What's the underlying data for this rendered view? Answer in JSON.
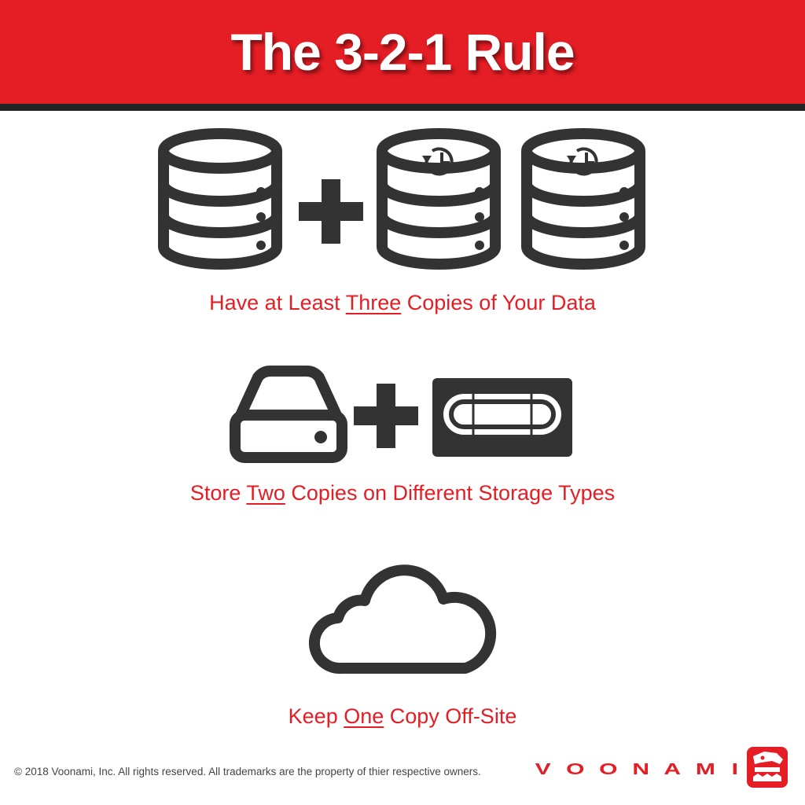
{
  "header": {
    "title": "The 3-2-1 Rule"
  },
  "sections": [
    {
      "icons": [
        "database-icon",
        "plus-icon",
        "backup-database-icon",
        "backup-database-icon"
      ],
      "caption": {
        "before": "Have at Least ",
        "emphasis": "Three",
        "after": " Copies of Your Data"
      }
    },
    {
      "icons": [
        "hard-drive-icon",
        "plus-icon",
        "tape-cartridge-icon"
      ],
      "caption": {
        "before": "Store ",
        "emphasis": "Two",
        "after": " Copies on Different Storage Types"
      }
    },
    {
      "icons": [
        "cloud-icon"
      ],
      "caption": {
        "before": "Keep ",
        "emphasis": "One",
        "after": " Copy Off-Site"
      }
    }
  ],
  "footer": {
    "copyright": "© 2018 Voonami, Inc. All rights reserved. All trademarks are the property of thier respective owners.",
    "brand_letters": [
      "V",
      "O",
      "O",
      "N",
      "A",
      "M",
      "I"
    ],
    "brand_mark_icon": "voonami-logo-icon"
  },
  "colors": {
    "accent": "#e51d24",
    "icon": "#333333",
    "header_border": "#222325",
    "background": "#ffffff"
  }
}
